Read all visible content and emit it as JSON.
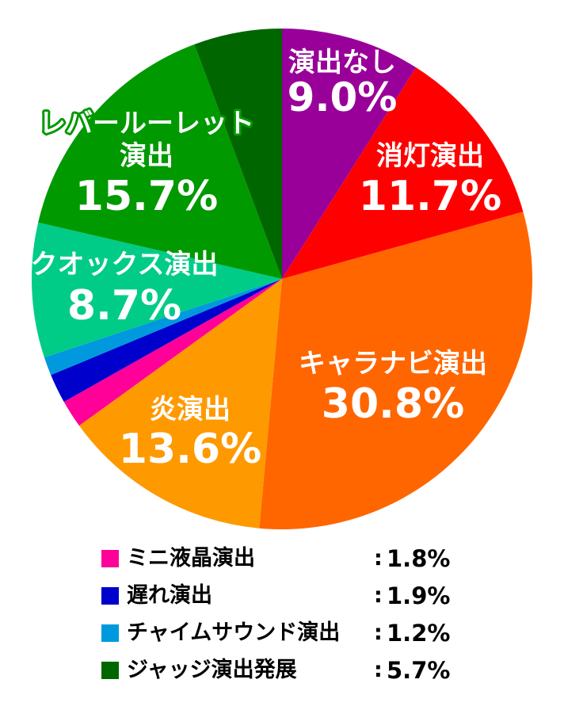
{
  "chart_data": {
    "type": "pie",
    "start": "12 o'clock",
    "direction": "clockwise",
    "slices": [
      {
        "label": "演出なし",
        "value": 9.0,
        "display": "9.0%",
        "color": "#990099",
        "label_color": "#ffffff",
        "label_style": "inside"
      },
      {
        "label": "消灯演出",
        "value": 11.7,
        "display": "11.7%",
        "color": "#ff0000",
        "label_color": "#ffffff",
        "label_style": "inside"
      },
      {
        "label": "キャラナビ演出",
        "value": 30.8,
        "display": "30.8%",
        "color": "#ff6600",
        "label_color": "#ffffff",
        "label_style": "inside"
      },
      {
        "label": "炎演出",
        "value": 13.6,
        "display": "13.6%",
        "color": "#ff9900",
        "label_color": "#ffffff",
        "label_style": "inside"
      },
      {
        "label": "ミニ液晶演出",
        "value": 1.8,
        "display": "1.8%",
        "color": "#ff0099",
        "label_style": "legend"
      },
      {
        "label": "遅れ演出",
        "value": 1.9,
        "display": "1.9%",
        "color": "#0000cc",
        "label_style": "legend"
      },
      {
        "label": "チャイムサウンド演出",
        "value": 1.2,
        "display": "1.2%",
        "color": "#0099dd",
        "label_style": "legend"
      },
      {
        "label": "クオックス演出",
        "value": 8.7,
        "display": "8.7%",
        "color": "#00cc88",
        "label_color": "#ffffff",
        "label_style": "inside"
      },
      {
        "label": "レバールーレット演出",
        "value": 15.7,
        "display": "15.7%",
        "color": "#009900",
        "label_color": "#ffffff",
        "label_style": "inside",
        "outline": "#009900"
      },
      {
        "label": "ジャッジ演出発展",
        "value": 5.7,
        "display": "5.7%",
        "color": "#006600",
        "label_style": "legend"
      }
    ],
    "legend": {
      "placement": "bottom",
      "items": [
        {
          "name": "ミニ液晶演出",
          "value": "1.8%",
          "color": "#ff0099"
        },
        {
          "name": "遅れ演出",
          "value": "1.9%",
          "color": "#0000cc"
        },
        {
          "name": "チャイムサウンド演出",
          "value": "1.2%",
          "color": "#0099dd"
        },
        {
          "name": "ジャッジ演出発展",
          "value": "5.7%",
          "color": "#006600"
        }
      ]
    }
  }
}
